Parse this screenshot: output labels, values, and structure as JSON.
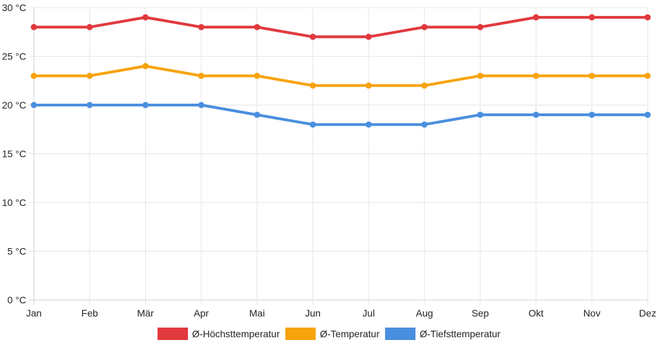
{
  "chart_data": {
    "type": "line",
    "title": "",
    "xlabel": "",
    "ylabel": "",
    "categories": [
      "Jan",
      "Feb",
      "Mär",
      "Apr",
      "Mai",
      "Jun",
      "Jul",
      "Aug",
      "Sep",
      "Okt",
      "Nov",
      "Dez"
    ],
    "ylim": [
      0,
      30
    ],
    "yticks": [
      0,
      5,
      10,
      15,
      20,
      25,
      30
    ],
    "ytick_labels": [
      "0 °C",
      "5 °C",
      "10 °C",
      "15 °C",
      "20 °C",
      "25 °C",
      "30 °C"
    ],
    "grid": true,
    "legend_position": "bottom",
    "series": [
      {
        "name": "Ø-Höchsttemperatur",
        "color": "#e0393e",
        "values": [
          28,
          28,
          29,
          28,
          28,
          27,
          27,
          28,
          28,
          29,
          29,
          29
        ]
      },
      {
        "name": "Ø-Temperatur",
        "color": "#f7a30d",
        "values": [
          23,
          23,
          24,
          23,
          23,
          22,
          22,
          22,
          23,
          23,
          23,
          23
        ]
      },
      {
        "name": "Ø-Tiefsttemperatur",
        "color": "#4a8fdf",
        "values": [
          20,
          20,
          20,
          20,
          19,
          18,
          18,
          18,
          19,
          19,
          19,
          19
        ]
      }
    ]
  }
}
